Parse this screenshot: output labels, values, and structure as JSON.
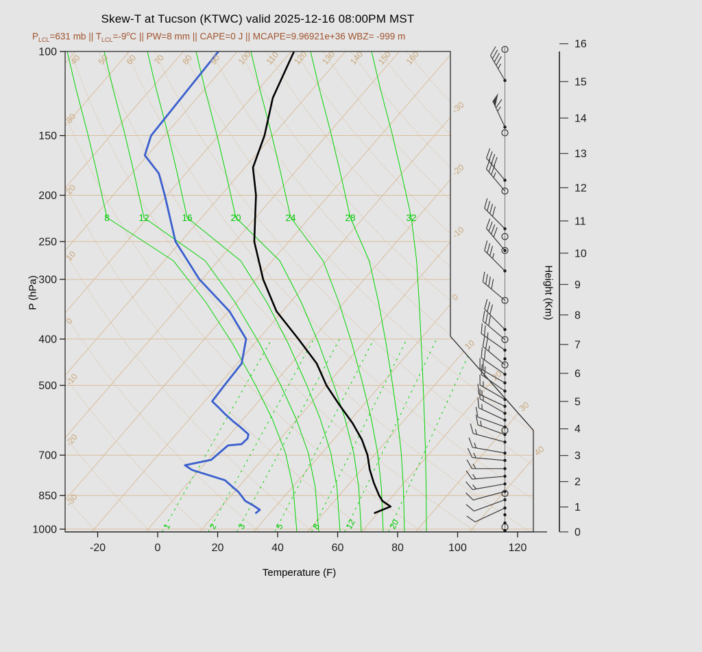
{
  "title": "Skew-T at Tucson (KTWC) valid 2025-12-16 08:00PM MST",
  "subtitle": {
    "color": "#a0522d",
    "parts": [
      {
        "text": "P"
      },
      {
        "text": "LCL",
        "style": "sub"
      },
      {
        "text": "=631 mb || T"
      },
      {
        "text": "LCL",
        "style": "sub"
      },
      {
        "text": "=-9"
      },
      {
        "text": "o",
        "style": "sup"
      },
      {
        "text": "C || PW=8 mm || CAPE=0 J || MCAPE=9.96921e+36 WBZ= -999 m"
      }
    ]
  },
  "stats": {
    "P_LCL": "631 mb",
    "T_LCL": "-9 oC",
    "PW": "8 mm",
    "CAPE": "0 J",
    "MCAPE": "9.96921e+36",
    "WBZ": "-999 m"
  },
  "axes": {
    "x": {
      "label": "Temperature (F)",
      "ticks": [
        -20,
        0,
        20,
        40,
        60,
        80,
        100,
        120
      ]
    },
    "y": {
      "label": "P (hPa)",
      "ticks": [
        100,
        150,
        200,
        250,
        300,
        400,
        500,
        700,
        850,
        1000
      ]
    },
    "height": {
      "label": "Height (Km)",
      "ticks": [
        0,
        1,
        2,
        3,
        4,
        5,
        6,
        7,
        8,
        9,
        10,
        11,
        12,
        13,
        14,
        15,
        16
      ]
    }
  },
  "background": {
    "colors": {
      "page_bg": "#e5e5e5",
      "tan_line": "#d9bd9c",
      "tan_label": "#c8a679",
      "green": "#00d400",
      "green_label": "#00c800",
      "temperature_curve": "#000000",
      "dewpoint_curve": "#3a5fcd",
      "border": "#2a2a2a",
      "barb": "#3c3c3c",
      "subtitle": "#a0522d"
    },
    "isotherm_labels_C": [
      -30,
      -20,
      -10,
      0,
      10,
      20,
      30,
      40
    ],
    "dry_adiabat_labels_C": [
      -30,
      -20,
      -10,
      0,
      10,
      20,
      30,
      40,
      50,
      60,
      70,
      80,
      90,
      100,
      110,
      120,
      130,
      140,
      150,
      160
    ],
    "moist_adiabat_labels_C": [
      8,
      12,
      16,
      20,
      24,
      28,
      32
    ],
    "mixing_ratio_labels_gkg": [
      1,
      2,
      3,
      5,
      8,
      12,
      20
    ]
  },
  "chart_data": {
    "type": "line",
    "title": "Skew-T at Tucson (KTWC) valid 2025-12-16 08:00PM MST",
    "xlabel": "Temperature (F)",
    "ylabel": "P (hPa)",
    "x_axis_range_F": [
      -30,
      127
    ],
    "pressure_range_hPa": [
      100,
      1013
    ],
    "profile_units": "degC",
    "temperature_profile": [
      [
        925,
        19.4
      ],
      [
        897,
        21.3
      ],
      [
        873,
        18.9
      ],
      [
        850,
        17.4
      ],
      [
        800,
        14.4
      ],
      [
        750,
        11.5
      ],
      [
        700,
        8.8
      ],
      [
        650,
        5.3
      ],
      [
        600,
        0.9
      ],
      [
        550,
        -4.4
      ],
      [
        500,
        -10.0
      ],
      [
        450,
        -15.3
      ],
      [
        400,
        -22.6
      ],
      [
        350,
        -31.1
      ],
      [
        300,
        -38.7
      ],
      [
        250,
        -46.4
      ],
      [
        200,
        -53.5
      ],
      [
        175,
        -58.5
      ],
      [
        150,
        -61.5
      ],
      [
        125,
        -66.0
      ],
      [
        100,
        -69.5
      ]
    ],
    "dewpoint_profile": [
      [
        925,
        -2.6
      ],
      [
        911,
        -2.4
      ],
      [
        893,
        -4.2
      ],
      [
        873,
        -6.5
      ],
      [
        836,
        -9.2
      ],
      [
        790,
        -13.6
      ],
      [
        752,
        -21.3
      ],
      [
        735,
        -23.4
      ],
      [
        716,
        -19.4
      ],
      [
        668,
        -18.6
      ],
      [
        664,
        -16.3
      ],
      [
        646,
        -16.1
      ],
      [
        633,
        -16.6
      ],
      [
        608,
        -19.7
      ],
      [
        594,
        -21.6
      ],
      [
        574,
        -24.2
      ],
      [
        555,
        -26.6
      ],
      [
        540,
        -28.6
      ],
      [
        500,
        -28.9
      ],
      [
        450,
        -29.2
      ],
      [
        400,
        -32.3
      ],
      [
        350,
        -39.8
      ],
      [
        300,
        -50.5
      ],
      [
        250,
        -61.0
      ],
      [
        200,
        -70.4
      ],
      [
        180,
        -75.0
      ],
      [
        165,
        -80.5
      ],
      [
        150,
        -82.5
      ],
      [
        100,
        -83.5
      ]
    ],
    "wind_barbs": [
      {
        "p": 99,
        "marker": "circle"
      },
      {
        "p": 115,
        "dir": 330,
        "spd": 45,
        "marker": "dot"
      },
      {
        "p": 144,
        "dir": 335,
        "spd": 65,
        "marker": "dot"
      },
      {
        "p": 148,
        "marker": "circle"
      },
      {
        "p": 186,
        "dir": 320,
        "spd": 40,
        "marker": "dot"
      },
      {
        "p": 196,
        "dir": 320,
        "spd": 35,
        "marker": "circle"
      },
      {
        "p": 235,
        "dir": 315,
        "spd": 40,
        "marker": "dot"
      },
      {
        "p": 244,
        "marker": "circle"
      },
      {
        "p": 261,
        "dir": 320,
        "spd": 40,
        "marker": "circledot"
      },
      {
        "p": 288,
        "dir": 315,
        "spd": 35,
        "marker": "dot"
      },
      {
        "p": 332,
        "dir": 310,
        "spd": 40,
        "marker": "circle"
      },
      {
        "p": 382,
        "dir": 315,
        "spd": 30,
        "marker": "dot"
      },
      {
        "p": 401,
        "dir": 310,
        "spd": 30,
        "marker": "circle"
      },
      {
        "p": 422,
        "dir": 305,
        "spd": 25,
        "marker": "dot"
      },
      {
        "p": 440,
        "marker": "dot"
      },
      {
        "p": 453,
        "dir": 310,
        "spd": 25,
        "marker": "circle"
      },
      {
        "p": 474,
        "dir": 305,
        "spd": 20,
        "marker": "dot"
      },
      {
        "p": 494,
        "dir": 300,
        "spd": 20,
        "marker": "dot"
      },
      {
        "p": 514,
        "dir": 305,
        "spd": 20,
        "marker": "dot"
      },
      {
        "p": 535,
        "dir": 300,
        "spd": 15,
        "marker": "dot"
      },
      {
        "p": 553,
        "dir": 295,
        "spd": 15,
        "marker": "dot"
      },
      {
        "p": 572,
        "dir": 300,
        "spd": 15,
        "marker": "dot"
      },
      {
        "p": 591,
        "dir": 295,
        "spd": 15,
        "marker": "dot"
      },
      {
        "p": 611,
        "dir": 290,
        "spd": 10,
        "marker": "dot"
      },
      {
        "p": 621,
        "marker": "circle"
      },
      {
        "p": 634,
        "dir": 290,
        "spd": 15,
        "marker": "dot"
      },
      {
        "p": 657,
        "dir": 285,
        "spd": 15,
        "marker": "dot"
      },
      {
        "p": 693,
        "dir": 280,
        "spd": 15,
        "marker": "dot"
      },
      {
        "p": 718,
        "dir": 275,
        "spd": 15,
        "marker": "dot"
      },
      {
        "p": 747,
        "dir": 270,
        "spd": 15,
        "marker": "dot"
      },
      {
        "p": 775,
        "dir": 265,
        "spd": 15,
        "marker": "dot"
      },
      {
        "p": 804,
        "dir": 260,
        "spd": 15,
        "marker": "dot"
      },
      {
        "p": 834,
        "dir": 255,
        "spd": 10,
        "marker": "dot"
      },
      {
        "p": 842,
        "marker": "circle"
      },
      {
        "p": 868,
        "dir": 250,
        "spd": 10,
        "marker": "dot"
      },
      {
        "p": 903,
        "dir": 245,
        "spd": 10,
        "marker": "dot"
      },
      {
        "p": 933,
        "marker": "dot"
      },
      {
        "p": 971,
        "marker": "dot"
      },
      {
        "p": 990,
        "marker": "circle"
      },
      {
        "p": 1007,
        "marker": "dot"
      }
    ],
    "moist_adiabat_anchor_x": {
      "8": [
        433,
        156
      ],
      "12": [
        465,
        210
      ],
      "16": [
        496,
        273
      ],
      "20": [
        527,
        344
      ],
      "24": [
        559,
        424
      ],
      "28": [
        590,
        511
      ],
      "32": [
        622,
        600
      ]
    }
  }
}
